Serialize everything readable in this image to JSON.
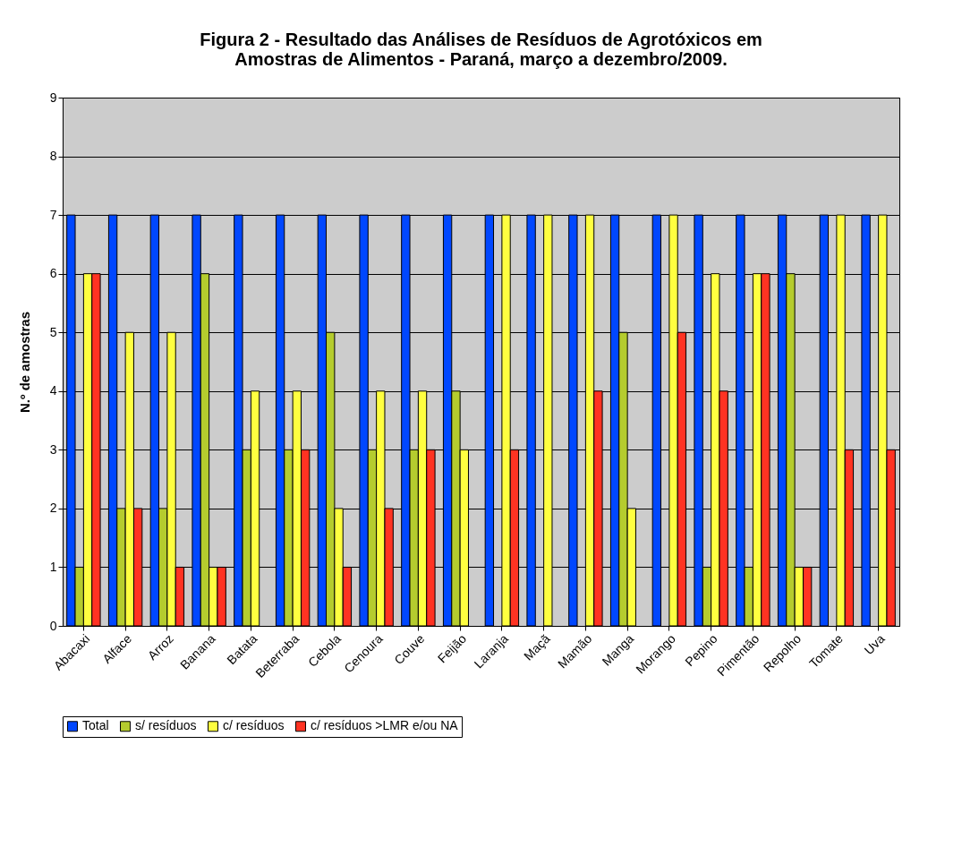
{
  "chart_data": {
    "type": "bar",
    "title": [
      "Figura 2 - Resultado das Análises de Resíduos de Agrotóxicos em",
      "Amostras de Alimentos - Paraná, março a dezembro/2009."
    ],
    "ylabel": "N.º de amostras",
    "categories": [
      "Abacaxi",
      "Alface",
      "Arroz",
      "Banana",
      "Batata",
      "Beterraba",
      "Cebola",
      "Cenoura",
      "Couve",
      "Feijão",
      "Laranja",
      "Maçã",
      "Mamão",
      "Manga",
      "Morango",
      "Pepino",
      "Pimentão",
      "Repolho",
      "Tomate",
      "Uva"
    ],
    "series": [
      {
        "name": "Total",
        "color": "#0047ff",
        "values": [
          7,
          7,
          7,
          7,
          7,
          7,
          7,
          7,
          7,
          7,
          7,
          7,
          7,
          7,
          7,
          7,
          7,
          7,
          7,
          7
        ]
      },
      {
        "name": "s/ resíduos",
        "color": "#b5cc2e",
        "values": [
          1,
          2,
          2,
          6,
          3,
          3,
          5,
          3,
          3,
          4,
          0,
          0,
          0,
          5,
          0,
          1,
          1,
          6,
          0,
          0
        ]
      },
      {
        "name": "c/ resíduos",
        "color": "#ffff40",
        "values": [
          6,
          5,
          5,
          1,
          4,
          4,
          2,
          4,
          4,
          3,
          7,
          7,
          7,
          2,
          7,
          6,
          6,
          1,
          7,
          7
        ]
      },
      {
        "name": "c/ resíduos >LMR e/ou NA",
        "color": "#ff3322",
        "values": [
          6,
          2,
          1,
          1,
          0,
          3,
          1,
          2,
          3,
          0,
          3,
          0,
          4,
          0,
          5,
          4,
          6,
          1,
          3,
          3
        ]
      }
    ],
    "ylim": [
      0,
      9
    ],
    "yticks": [
      0,
      1,
      2,
      3,
      4,
      5,
      6,
      7,
      8,
      9
    ],
    "grid": "y",
    "legend": "bottom"
  }
}
